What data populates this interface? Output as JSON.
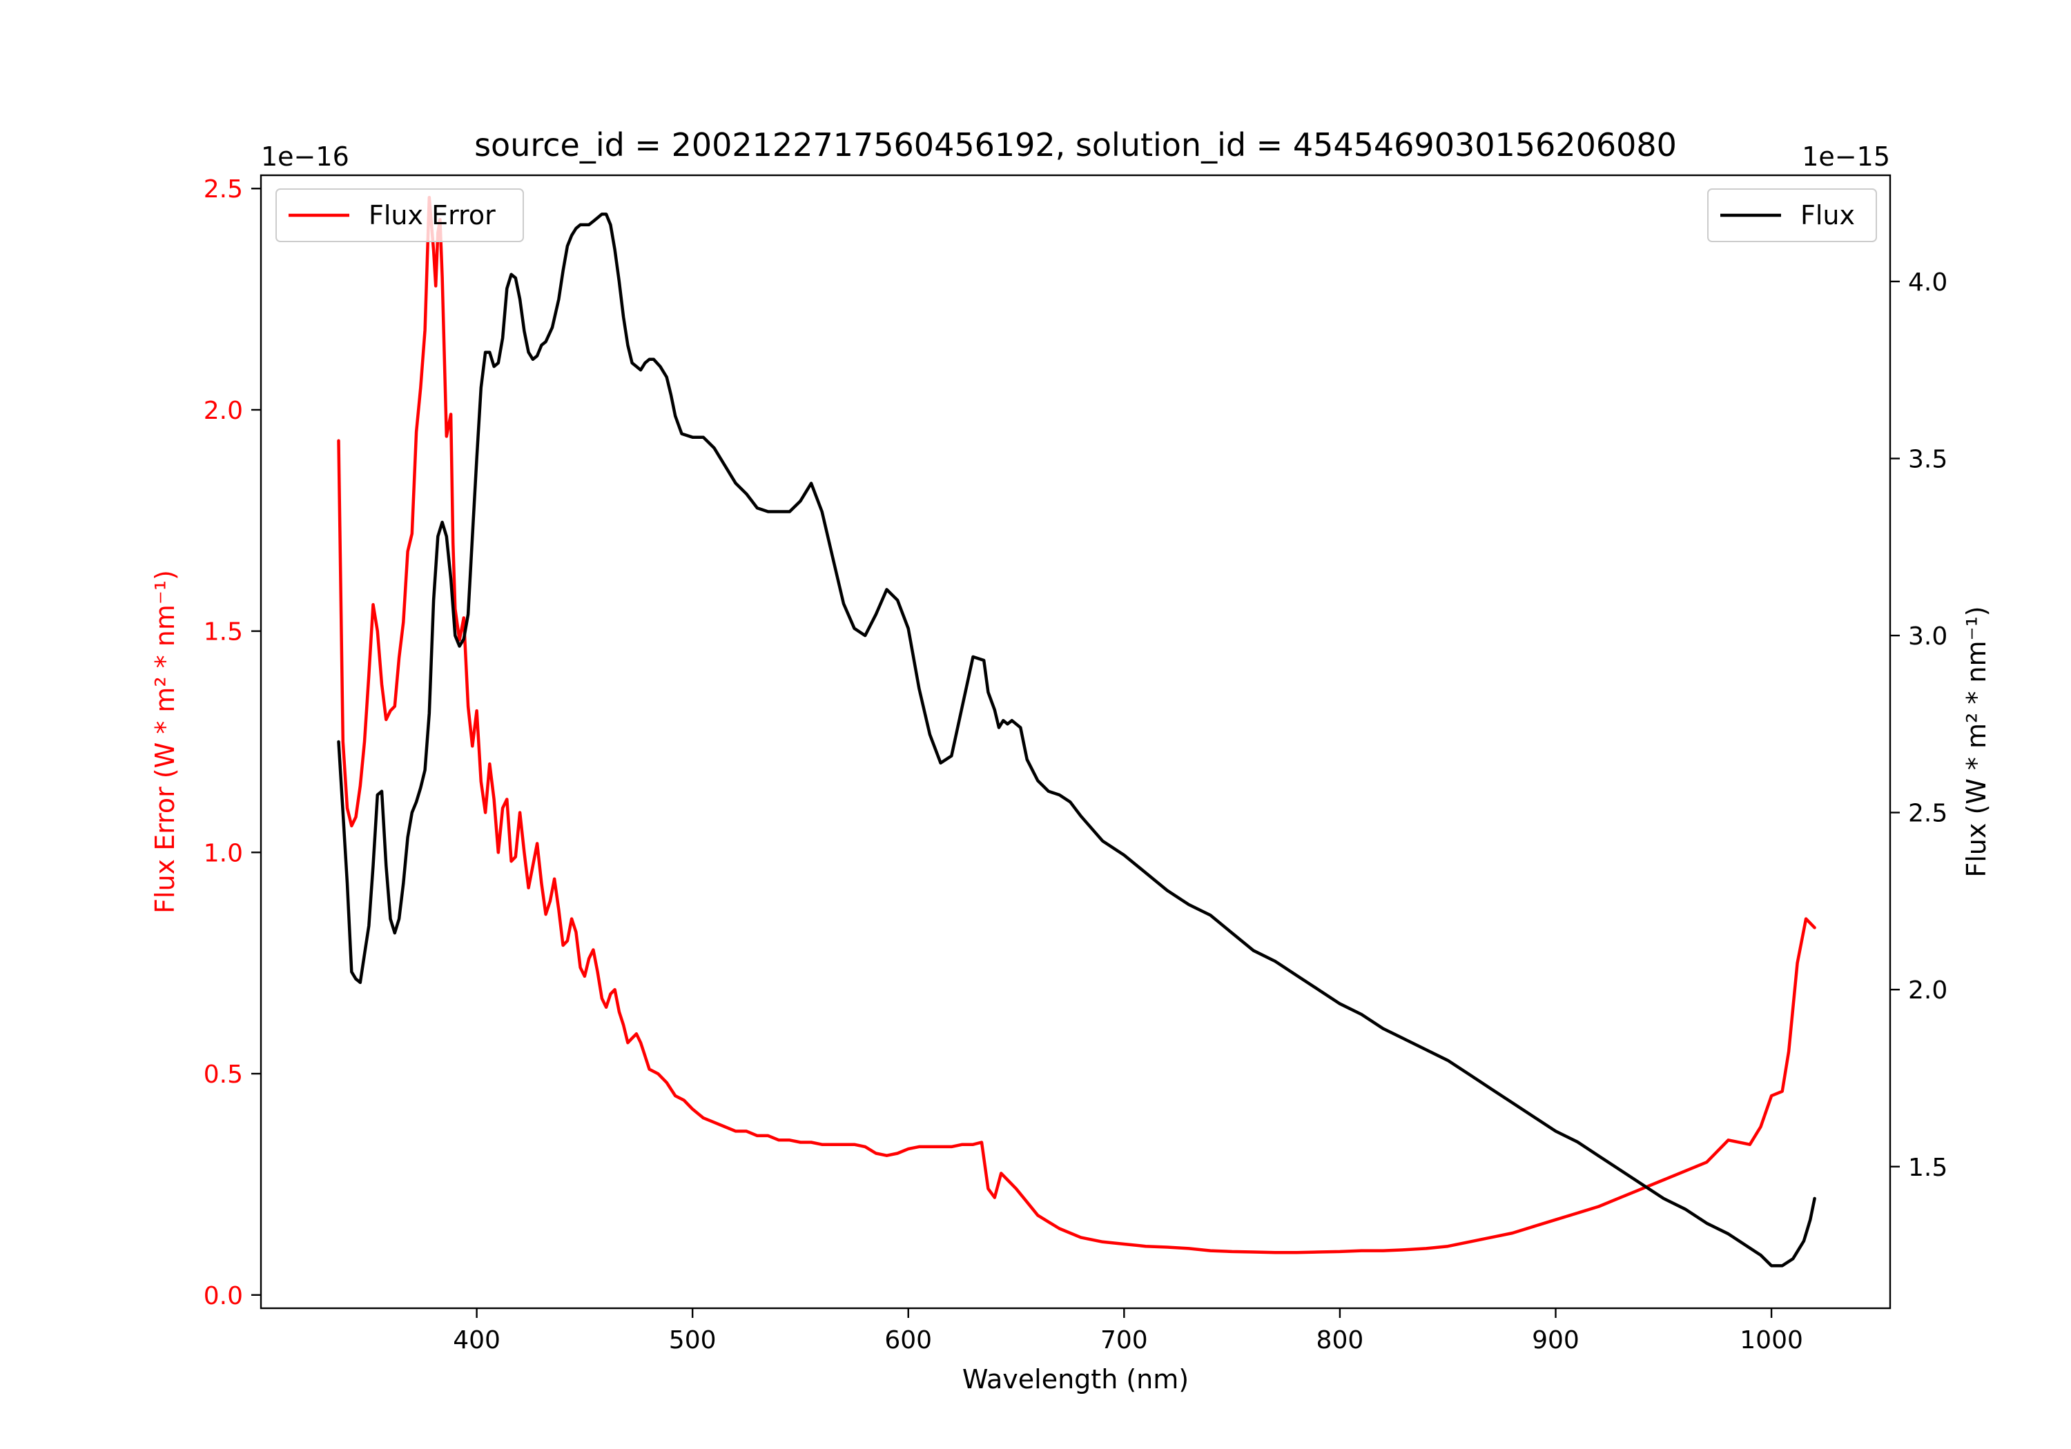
{
  "chart_data": {
    "type": "line",
    "title": "source_id = 2002122717560456192, solution_id = 4545469030156206080",
    "xlabel": "Wavelength (nm)",
    "ylabel_left": "Flux Error (W * m² * nm⁻¹)",
    "ylabel_right": "Flux (W * m² * nm⁻¹)",
    "offset_left": "1e−16",
    "offset_right": "1e−15",
    "xlim": [
      300,
      1055
    ],
    "ylim_left": [
      -0.03,
      2.53
    ],
    "ylim_right": [
      1.1,
      4.3
    ],
    "x_ticks": [
      400,
      500,
      600,
      700,
      800,
      900,
      1000
    ],
    "x_tick_labels": [
      "400",
      "500",
      "600",
      "700",
      "800",
      "900",
      "1000"
    ],
    "left_ticks": [
      0.0,
      0.5,
      1.0,
      1.5,
      2.0,
      2.5
    ],
    "left_tick_labels": [
      "0.0",
      "0.5",
      "1.0",
      "1.5",
      "2.0",
      "2.5"
    ],
    "right_ticks": [
      1.5,
      2.0,
      2.5,
      3.0,
      3.5,
      4.0
    ],
    "right_tick_labels": [
      "1.5",
      "2.0",
      "2.5",
      "3.0",
      "3.5",
      "4.0"
    ],
    "grid": false,
    "series": [
      {
        "name": "Flux Error",
        "axis": "left",
        "color": "#ff0000",
        "legend_position": "upper left",
        "x": [
          336,
          338,
          340,
          342,
          344,
          346,
          348,
          350,
          352,
          354,
          356,
          358,
          360,
          362,
          364,
          366,
          368,
          370,
          372,
          374,
          376,
          378,
          380,
          381,
          382,
          383,
          384,
          386,
          388,
          389,
          390,
          392,
          394,
          396,
          398,
          400,
          402,
          404,
          406,
          408,
          410,
          412,
          414,
          416,
          418,
          420,
          422,
          424,
          426,
          428,
          430,
          432,
          434,
          436,
          438,
          440,
          442,
          444,
          446,
          448,
          450,
          452,
          454,
          456,
          458,
          460,
          462,
          464,
          466,
          468,
          470,
          472,
          474,
          476,
          478,
          480,
          484,
          488,
          492,
          496,
          500,
          505,
          510,
          515,
          520,
          525,
          530,
          535,
          540,
          545,
          550,
          555,
          560,
          565,
          570,
          575,
          580,
          585,
          590,
          595,
          600,
          605,
          610,
          615,
          620,
          625,
          630,
          634,
          637,
          640,
          643,
          646,
          650,
          655,
          660,
          665,
          670,
          680,
          690,
          700,
          710,
          720,
          730,
          740,
          750,
          760,
          770,
          780,
          790,
          800,
          810,
          820,
          830,
          840,
          850,
          860,
          870,
          880,
          890,
          900,
          910,
          920,
          930,
          940,
          950,
          960,
          970,
          980,
          990,
          995,
          1000,
          1005,
          1008,
          1012,
          1016,
          1020
        ],
        "values": [
          1.93,
          1.25,
          1.1,
          1.06,
          1.08,
          1.15,
          1.25,
          1.4,
          1.56,
          1.5,
          1.38,
          1.3,
          1.32,
          1.33,
          1.44,
          1.52,
          1.68,
          1.72,
          1.95,
          2.05,
          2.18,
          2.48,
          2.36,
          2.28,
          2.4,
          2.43,
          2.3,
          1.94,
          1.99,
          1.7,
          1.55,
          1.48,
          1.53,
          1.33,
          1.24,
          1.32,
          1.16,
          1.09,
          1.2,
          1.12,
          1.0,
          1.1,
          1.12,
          0.98,
          0.99,
          1.09,
          1.0,
          0.92,
          0.97,
          1.02,
          0.93,
          0.86,
          0.89,
          0.94,
          0.87,
          0.79,
          0.8,
          0.85,
          0.82,
          0.74,
          0.72,
          0.76,
          0.78,
          0.73,
          0.67,
          0.65,
          0.68,
          0.69,
          0.64,
          0.61,
          0.57,
          0.58,
          0.59,
          0.57,
          0.54,
          0.51,
          0.5,
          0.48,
          0.45,
          0.44,
          0.42,
          0.4,
          0.39,
          0.38,
          0.37,
          0.37,
          0.36,
          0.36,
          0.35,
          0.35,
          0.345,
          0.345,
          0.34,
          0.34,
          0.34,
          0.34,
          0.335,
          0.32,
          0.315,
          0.32,
          0.33,
          0.335,
          0.335,
          0.335,
          0.335,
          0.34,
          0.34,
          0.345,
          0.24,
          0.22,
          0.275,
          0.26,
          0.24,
          0.21,
          0.18,
          0.165,
          0.15,
          0.13,
          0.12,
          0.115,
          0.11,
          0.108,
          0.105,
          0.1,
          0.098,
          0.097,
          0.096,
          0.096,
          0.097,
          0.098,
          0.1,
          0.1,
          0.102,
          0.105,
          0.11,
          0.12,
          0.13,
          0.14,
          0.155,
          0.17,
          0.185,
          0.2,
          0.22,
          0.24,
          0.26,
          0.28,
          0.3,
          0.35,
          0.34,
          0.38,
          0.45,
          0.46,
          0.55,
          0.75,
          0.85,
          0.83
        ]
      },
      {
        "name": "Flux",
        "axis": "right",
        "color": "#000000",
        "legend_position": "upper right",
        "x": [
          336,
          338,
          340,
          342,
          344,
          346,
          348,
          350,
          352,
          354,
          356,
          358,
          360,
          362,
          364,
          366,
          368,
          370,
          372,
          374,
          376,
          378,
          380,
          382,
          384,
          386,
          388,
          390,
          392,
          394,
          396,
          398,
          400,
          402,
          404,
          406,
          408,
          410,
          412,
          414,
          416,
          418,
          420,
          422,
          424,
          426,
          428,
          430,
          432,
          435,
          438,
          440,
          442,
          444,
          446,
          448,
          450,
          452,
          454,
          456,
          458,
          460,
          462,
          464,
          466,
          468,
          470,
          472,
          474,
          476,
          478,
          480,
          482,
          485,
          488,
          490,
          492,
          495,
          500,
          505,
          510,
          515,
          520,
          525,
          530,
          535,
          540,
          545,
          550,
          555,
          560,
          565,
          570,
          575,
          580,
          585,
          590,
          595,
          600,
          605,
          610,
          615,
          620,
          625,
          630,
          635,
          637,
          640,
          642,
          644,
          646,
          648,
          652,
          655,
          660,
          665,
          670,
          675,
          680,
          690,
          700,
          710,
          720,
          730,
          740,
          750,
          760,
          770,
          780,
          790,
          800,
          810,
          820,
          830,
          840,
          850,
          860,
          870,
          880,
          890,
          900,
          910,
          920,
          930,
          940,
          950,
          960,
          970,
          980,
          990,
          995,
          1000,
          1005,
          1010,
          1015,
          1018,
          1020
        ],
        "values": [
          2.7,
          2.5,
          2.3,
          2.05,
          2.03,
          2.02,
          2.1,
          2.18,
          2.35,
          2.55,
          2.56,
          2.35,
          2.2,
          2.16,
          2.2,
          2.3,
          2.43,
          2.5,
          2.53,
          2.57,
          2.62,
          2.78,
          3.1,
          3.28,
          3.32,
          3.28,
          3.16,
          3.0,
          2.97,
          2.99,
          3.06,
          3.28,
          3.5,
          3.7,
          3.8,
          3.8,
          3.76,
          3.77,
          3.84,
          3.98,
          4.02,
          4.01,
          3.95,
          3.86,
          3.8,
          3.78,
          3.79,
          3.82,
          3.83,
          3.87,
          3.95,
          4.03,
          4.1,
          4.13,
          4.15,
          4.16,
          4.16,
          4.16,
          4.17,
          4.18,
          4.19,
          4.19,
          4.16,
          4.09,
          4.0,
          3.9,
          3.82,
          3.77,
          3.76,
          3.75,
          3.77,
          3.78,
          3.78,
          3.76,
          3.73,
          3.68,
          3.62,
          3.57,
          3.56,
          3.56,
          3.53,
          3.48,
          3.43,
          3.4,
          3.36,
          3.35,
          3.35,
          3.35,
          3.38,
          3.43,
          3.35,
          3.22,
          3.09,
          3.02,
          3.0,
          3.06,
          3.13,
          3.1,
          3.02,
          2.85,
          2.72,
          2.64,
          2.66,
          2.8,
          2.94,
          2.93,
          2.84,
          2.79,
          2.74,
          2.76,
          2.75,
          2.76,
          2.74,
          2.65,
          2.59,
          2.56,
          2.55,
          2.53,
          2.49,
          2.42,
          2.38,
          2.33,
          2.28,
          2.24,
          2.21,
          2.16,
          2.11,
          2.08,
          2.04,
          2.0,
          1.96,
          1.93,
          1.89,
          1.86,
          1.83,
          1.8,
          1.76,
          1.72,
          1.68,
          1.64,
          1.6,
          1.57,
          1.53,
          1.49,
          1.45,
          1.41,
          1.38,
          1.34,
          1.31,
          1.27,
          1.25,
          1.22,
          1.22,
          1.24,
          1.29,
          1.35,
          1.41
        ]
      }
    ]
  }
}
